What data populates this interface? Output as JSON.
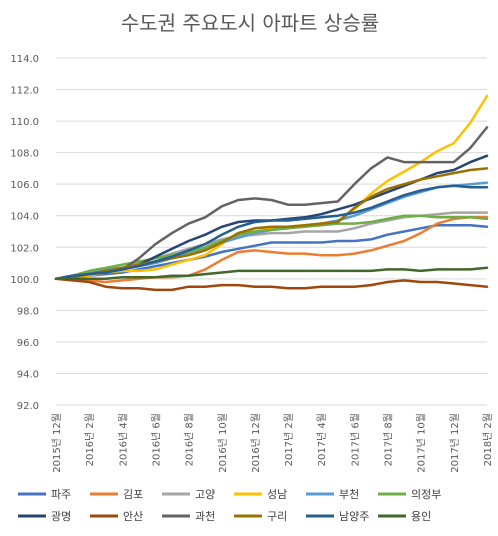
{
  "chart_data": {
    "type": "line",
    "title": "수도권 주요도시 아파트 상승률",
    "xlabel": "",
    "ylabel": "",
    "ylim": [
      92.0,
      114.0
    ],
    "yticks": [
      "92.0",
      "94.0",
      "96.0",
      "98.0",
      "100.0",
      "102.0",
      "104.0",
      "106.0",
      "108.0",
      "110.0",
      "112.0",
      "114.0"
    ],
    "x": [
      "2015년 12월",
      "2016년 1월",
      "2016년 2월",
      "2016년 3월",
      "2016년 4월",
      "2016년 5월",
      "2016년 6월",
      "2016년 7월",
      "2016년 8월",
      "2016년 9월",
      "2016년 10월",
      "2016년 11월",
      "2016년 12월",
      "2017년 1월",
      "2017년 2월",
      "2017년 3월",
      "2017년 4월",
      "2017년 5월",
      "2017년 6월",
      "2017년 7월",
      "2017년 8월",
      "2017년 9월",
      "2017년 10월",
      "2017년 11월",
      "2017년 12월",
      "2018년 1월",
      "2018년 2월"
    ],
    "xtick_labels": [
      "2015년 12월",
      "2016년 2월",
      "2016년 4월",
      "2016년 6월",
      "2016년 8월",
      "2016년 10월",
      "2016년 12월",
      "2017년 2월",
      "2017년 4월",
      "2017년 6월",
      "2017년 8월",
      "2017년 10월",
      "2017년 12월",
      "2018년 2월"
    ],
    "legend": "bottom",
    "grid": true,
    "series": [
      {
        "name": "파주",
        "color": "#4472c4",
        "values": [
          100.0,
          100.1,
          100.2,
          100.3,
          100.4,
          100.6,
          100.8,
          101.0,
          101.2,
          101.4,
          101.7,
          101.9,
          102.1,
          102.3,
          102.3,
          102.3,
          102.3,
          102.4,
          102.4,
          102.5,
          102.8,
          103.0,
          103.2,
          103.4,
          103.4,
          103.4,
          103.3
        ]
      },
      {
        "name": "김포",
        "color": "#ed7d31",
        "values": [
          100.0,
          99.9,
          99.9,
          99.8,
          99.9,
          100.0,
          100.1,
          100.1,
          100.2,
          100.6,
          101.2,
          101.7,
          101.8,
          101.7,
          101.6,
          101.6,
          101.5,
          101.5,
          101.6,
          101.8,
          102.1,
          102.4,
          102.9,
          103.5,
          103.8,
          103.9,
          103.9
        ]
      },
      {
        "name": "고양",
        "color": "#a5a5a5",
        "values": [
          100.0,
          100.1,
          100.3,
          100.5,
          100.7,
          101.0,
          101.3,
          101.6,
          101.9,
          102.2,
          102.5,
          102.7,
          102.8,
          102.9,
          102.9,
          103.0,
          103.0,
          103.0,
          103.2,
          103.5,
          103.7,
          103.9,
          104.0,
          104.1,
          104.2,
          104.2,
          104.2
        ]
      },
      {
        "name": "성남",
        "color": "#ffc000",
        "values": [
          100.0,
          100.1,
          100.2,
          100.4,
          100.5,
          100.5,
          100.6,
          100.9,
          101.2,
          101.5,
          102.2,
          102.9,
          103.2,
          103.2,
          103.3,
          103.4,
          103.5,
          103.6,
          104.4,
          105.4,
          106.2,
          106.8,
          107.4,
          108.1,
          108.6,
          109.9,
          111.6
        ]
      },
      {
        "name": "부천",
        "color": "#5b9bd5",
        "values": [
          100.0,
          100.2,
          100.4,
          100.6,
          100.7,
          100.8,
          101.0,
          101.3,
          101.6,
          101.9,
          102.3,
          102.6,
          102.9,
          103.1,
          103.2,
          103.4,
          103.5,
          103.7,
          104.0,
          104.4,
          104.8,
          105.2,
          105.5,
          105.8,
          105.9,
          106.0,
          106.1
        ]
      },
      {
        "name": "의정부",
        "color": "#70ad47",
        "values": [
          100.0,
          100.2,
          100.5,
          100.7,
          100.9,
          101.1,
          101.3,
          101.5,
          101.7,
          102.0,
          102.4,
          102.8,
          103.0,
          103.1,
          103.2,
          103.3,
          103.4,
          103.5,
          103.5,
          103.6,
          103.8,
          104.0,
          104.0,
          103.9,
          103.9,
          103.9,
          103.8
        ]
      },
      {
        "name": "광명",
        "color": "#264478",
        "values": [
          100.0,
          100.2,
          100.3,
          100.5,
          100.6,
          100.9,
          101.4,
          101.9,
          102.4,
          102.8,
          103.3,
          103.6,
          103.7,
          103.7,
          103.8,
          103.9,
          104.1,
          104.4,
          104.7,
          105.1,
          105.5,
          105.9,
          106.3,
          106.7,
          106.9,
          107.4,
          107.8
        ]
      },
      {
        "name": "안산",
        "color": "#9e480e",
        "values": [
          100.0,
          99.9,
          99.8,
          99.5,
          99.4,
          99.4,
          99.3,
          99.3,
          99.5,
          99.5,
          99.6,
          99.6,
          99.5,
          99.5,
          99.4,
          99.4,
          99.5,
          99.5,
          99.5,
          99.6,
          99.8,
          99.9,
          99.8,
          99.8,
          99.7,
          99.6,
          99.5
        ]
      },
      {
        "name": "과천",
        "color": "#636363",
        "values": [
          100.0,
          100.2,
          100.3,
          100.4,
          100.6,
          101.3,
          102.2,
          102.9,
          103.5,
          103.9,
          104.6,
          105.0,
          105.1,
          105.0,
          104.7,
          104.7,
          104.8,
          104.9,
          106.0,
          107.0,
          107.7,
          107.4,
          107.4,
          107.4,
          107.4,
          108.3,
          109.6
        ]
      },
      {
        "name": "구리",
        "color": "#997300",
        "values": [
          100.0,
          100.1,
          100.3,
          100.5,
          100.7,
          100.9,
          101.1,
          101.3,
          101.5,
          101.8,
          102.3,
          102.9,
          103.2,
          103.3,
          103.3,
          103.4,
          103.5,
          103.6,
          104.5,
          105.2,
          105.7,
          106.0,
          106.3,
          106.5,
          106.7,
          106.9,
          107.0
        ]
      },
      {
        "name": "남양주",
        "color": "#255e91",
        "values": [
          100.0,
          100.2,
          100.3,
          100.4,
          100.6,
          100.8,
          101.1,
          101.4,
          101.8,
          102.2,
          102.8,
          103.3,
          103.6,
          103.7,
          103.7,
          103.8,
          103.9,
          104.0,
          104.2,
          104.5,
          104.9,
          105.3,
          105.6,
          105.8,
          105.9,
          105.8,
          105.8
        ]
      },
      {
        "name": "용인",
        "color": "#43682b",
        "values": [
          100.0,
          100.0,
          100.0,
          100.0,
          100.1,
          100.1,
          100.1,
          100.2,
          100.2,
          100.3,
          100.4,
          100.5,
          100.5,
          100.5,
          100.5,
          100.5,
          100.5,
          100.5,
          100.5,
          100.5,
          100.6,
          100.6,
          100.5,
          100.6,
          100.6,
          100.6,
          100.7
        ]
      }
    ]
  }
}
